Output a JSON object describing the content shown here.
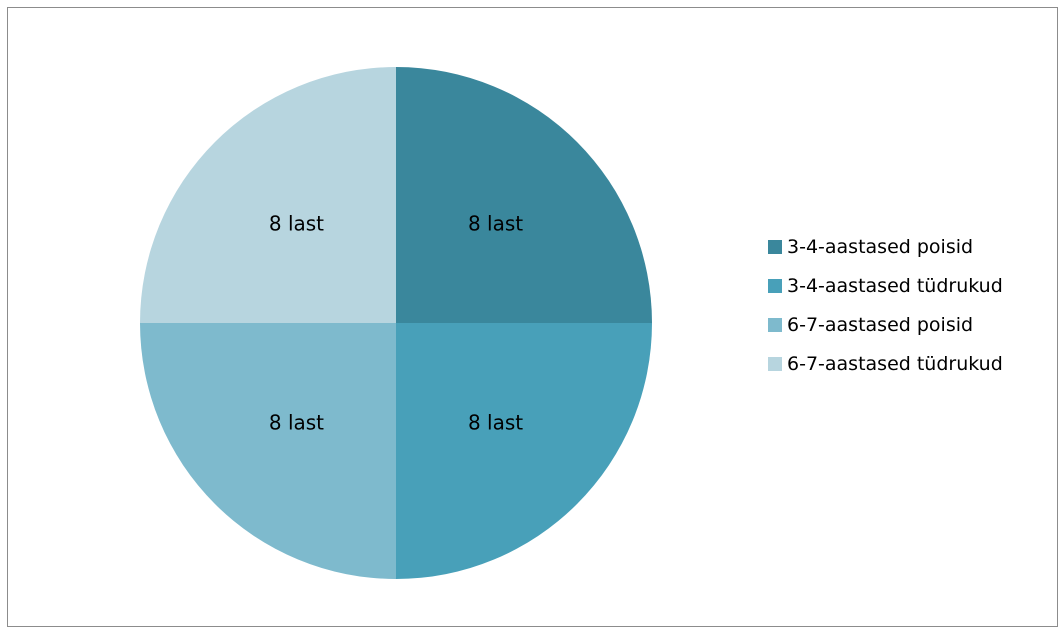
{
  "chart_data": {
    "type": "pie",
    "title": "",
    "slices": [
      {
        "name": "3-4-aastased poisid",
        "value": 8,
        "label": "8 last",
        "color": "#3A879C"
      },
      {
        "name": "3-4-aastased tüdrukud",
        "value": 8,
        "label": "8 last",
        "color": "#48A0B9"
      },
      {
        "name": "6-7-aastased poisid",
        "value": 8,
        "label": "8 last",
        "color": "#7EBACD"
      },
      {
        "name": "6-7-aastased tüdrukud",
        "value": 8,
        "label": "8 last",
        "color": "#B7D5DF"
      }
    ],
    "start_angle": "12 o'clock",
    "direction": "clockwise",
    "legend_position": "right"
  }
}
